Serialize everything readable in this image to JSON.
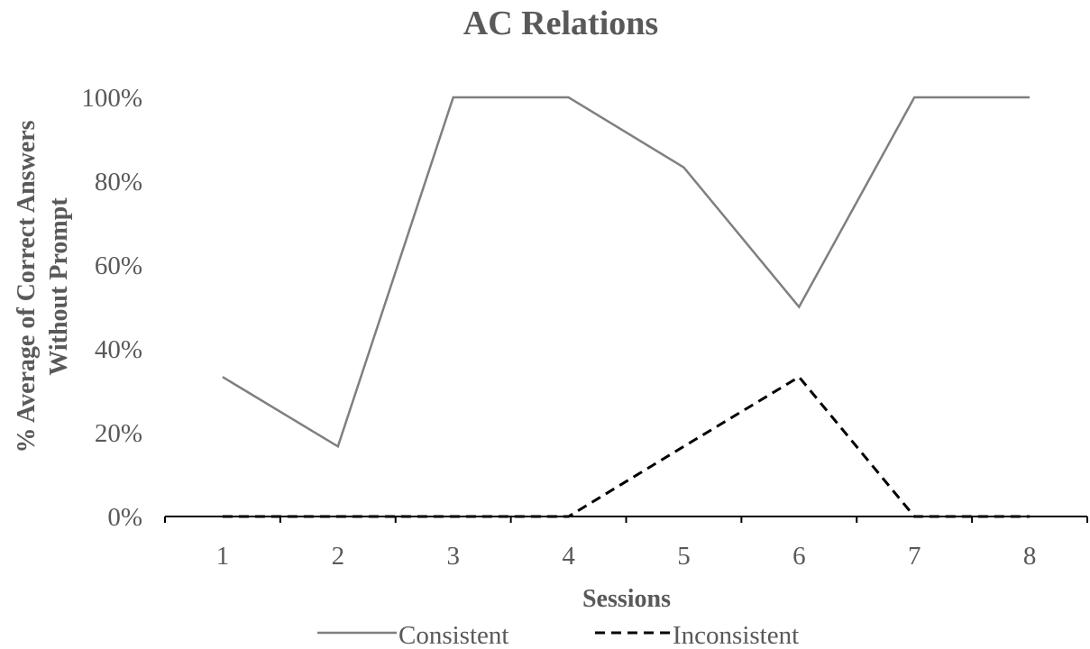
{
  "chart_data": {
    "type": "line",
    "title": "AC Relations",
    "xlabel": "Sessions",
    "ylabel_lines": [
      "% Average of Correct Answers",
      "Without Prompt"
    ],
    "categories": [
      "1",
      "2",
      "3",
      "4",
      "5",
      "6",
      "7",
      "8"
    ],
    "ylim": [
      0,
      100
    ],
    "yticks": [
      0,
      20,
      40,
      60,
      80,
      100
    ],
    "ytick_labels": [
      "0%",
      "20%",
      "40%",
      "60%",
      "80%",
      "100%"
    ],
    "grid": false,
    "legend_position": "bottom",
    "series": [
      {
        "name": "Consistent",
        "values": [
          33.3,
          16.7,
          100,
          100,
          83.3,
          50,
          100,
          100
        ],
        "color": "#7f7f7f",
        "style": "solid"
      },
      {
        "name": "Inconsistent",
        "values": [
          0,
          0,
          0,
          0,
          16.7,
          33.3,
          0,
          0
        ],
        "color": "#000000",
        "style": "dashed"
      }
    ],
    "axis_color": "#000000",
    "text_color": "#595959"
  }
}
